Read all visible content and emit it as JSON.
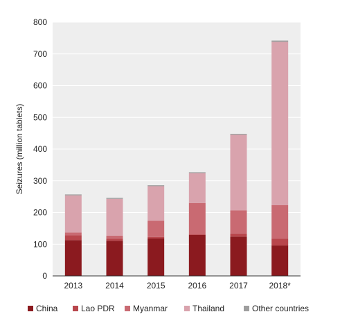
{
  "chart_data": {
    "type": "bar",
    "stacked": true,
    "categories": [
      "2013",
      "2014",
      "2015",
      "2016",
      "2017",
      "2018*"
    ],
    "ylabel": "Seizures (million tablets)",
    "xlabel": "",
    "ylim": [
      0,
      800
    ],
    "yticks": [
      "0",
      "100",
      "200",
      "300",
      "400",
      "500",
      "600",
      "700",
      "800"
    ],
    "grid": true,
    "legend_position": "bottom",
    "series": [
      {
        "name": "China",
        "color": "#8b1a1f",
        "values": [
          113,
          111,
          118,
          129,
          124,
          96
        ]
      },
      {
        "name": "Lao PDR",
        "color": "#b8464c",
        "values": [
          15,
          6,
          5,
          2,
          10,
          21
        ]
      },
      {
        "name": "Myanmar",
        "color": "#c96a72",
        "values": [
          9,
          10,
          51,
          99,
          73,
          106
        ]
      },
      {
        "name": "Thailand",
        "color": "#d9a3ad",
        "values": [
          117,
          116,
          109,
          94,
          238,
          515
        ]
      },
      {
        "name": "Other countries",
        "color": "#9e9e9e",
        "values": [
          3,
          3,
          3,
          3,
          3,
          4
        ]
      }
    ]
  }
}
